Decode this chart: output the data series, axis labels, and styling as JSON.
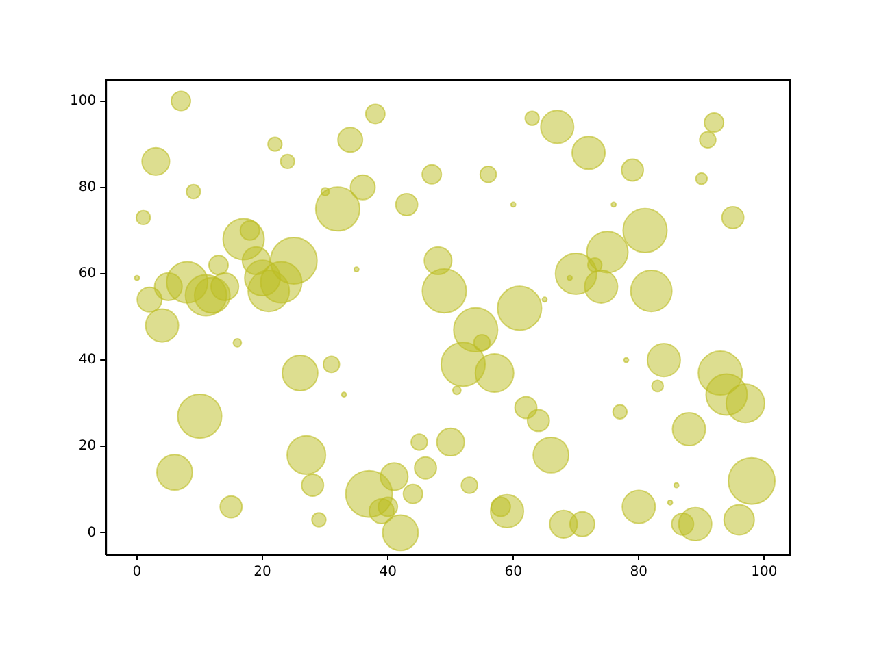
{
  "chart_data": {
    "type": "bubble",
    "color": "#bcbd22",
    "x": [
      0,
      1,
      2,
      3,
      4,
      5,
      6,
      7,
      8,
      9,
      10,
      11,
      12,
      13,
      14,
      15,
      16,
      17,
      18,
      19,
      20,
      21,
      22,
      23,
      24,
      25,
      26,
      27,
      28,
      29,
      30,
      31,
      32,
      33,
      34,
      35,
      36,
      37,
      38,
      39,
      40,
      41,
      42,
      43,
      44,
      45,
      46,
      47,
      48,
      49,
      50,
      51,
      52,
      53,
      54,
      55,
      56,
      57,
      58,
      59,
      60,
      61,
      62,
      63,
      64,
      65,
      66,
      67,
      68,
      69,
      70,
      71,
      72,
      73,
      74,
      75,
      76,
      77,
      78,
      79,
      80,
      81,
      82,
      83,
      84,
      85,
      86,
      87,
      88,
      89,
      90,
      91,
      92,
      93,
      94,
      95,
      96,
      97,
      98
    ],
    "values": [
      59,
      73,
      54,
      86,
      48,
      57,
      14,
      100,
      58,
      79,
      27,
      55,
      55,
      62,
      57,
      6,
      44,
      68,
      70,
      63,
      59,
      56,
      90,
      58,
      86,
      63,
      37,
      18,
      11,
      3,
      79,
      39,
      75,
      32,
      91,
      61,
      80,
      9,
      97,
      5,
      6,
      13,
      0,
      76,
      9,
      21,
      15,
      83,
      63,
      56,
      21,
      33,
      39,
      11,
      47,
      44,
      83,
      37,
      6,
      5,
      76,
      52,
      29,
      96,
      26,
      54,
      18,
      94,
      2,
      59,
      60,
      2,
      88,
      62,
      57,
      65,
      76,
      28,
      40,
      84,
      6,
      70,
      56,
      34,
      40,
      7,
      11,
      2,
      24,
      2,
      82,
      91,
      95,
      37,
      32,
      73,
      3,
      30,
      12
    ],
    "sizes": [
      0.01,
      0.09,
      0.28,
      0.35,
      0.5,
      0.35,
      0.58,
      0.17,
      0.78,
      0.09,
      0.89,
      0.78,
      0.58,
      0.17,
      0.35,
      0.22,
      0.03,
      0.78,
      0.17,
      0.35,
      0.58,
      0.78,
      0.09,
      0.78,
      0.09,
      1,
      0.58,
      0.68,
      0.22,
      0.09,
      0.03,
      0.12,
      0.89,
      0.01,
      0.28,
      0.01,
      0.28,
      1,
      0.17,
      0.28,
      0.17,
      0.35,
      0.58,
      0.22,
      0.17,
      0.12,
      0.22,
      0.17,
      0.35,
      0.89,
      0.35,
      0.03,
      0.89,
      0.12,
      0.89,
      0.12,
      0.12,
      0.68,
      0.17,
      0.5,
      0.01,
      0.89,
      0.22,
      0.09,
      0.22,
      0.01,
      0.58,
      0.5,
      0.35,
      0.01,
      0.78,
      0.28,
      0.5,
      0.09,
      0.5,
      0.78,
      0.01,
      0.09,
      0.01,
      0.22,
      0.5,
      0.89,
      0.78,
      0.06,
      0.5,
      0.01,
      0.01,
      0.22,
      0.5,
      0.5,
      0.06,
      0.12,
      0.17,
      0.89,
      0.78,
      0.22,
      0.42,
      0.68,
      1
    ],
    "xlim": [
      -5,
      104
    ],
    "ylim": [
      -5,
      105
    ],
    "xticks": [
      0,
      20,
      40,
      60,
      80,
      100
    ],
    "yticks": [
      0,
      20,
      40,
      60,
      80,
      100
    ],
    "grid": false,
    "legend": false
  }
}
